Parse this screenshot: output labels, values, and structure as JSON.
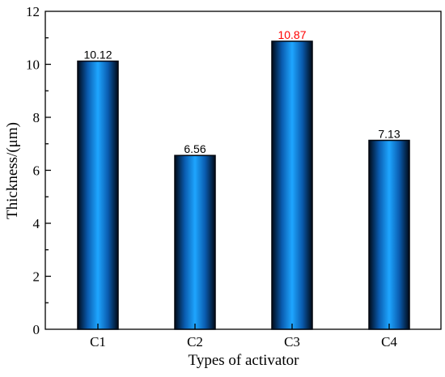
{
  "chart_data": {
    "type": "bar",
    "categories": [
      "C1",
      "C2",
      "C3",
      "C4"
    ],
    "values": [
      10.12,
      6.56,
      10.87,
      7.13
    ],
    "data_labels": [
      "10.12",
      "6.56",
      "10.87",
      "7.13"
    ],
    "highlight_index": 2,
    "highlight_color": "#ff0000",
    "label_color": "#000000",
    "bar_gradient": [
      "#000a18",
      "#0a5cb0",
      "#1ea6ff",
      "#0a5cb0",
      "#000a18"
    ],
    "xlabel": "Types of activator",
    "ylabel": "Thickness/(μm)",
    "ylim": [
      0,
      12
    ],
    "yticks": [
      0,
      2,
      4,
      6,
      8,
      10,
      12
    ],
    "grid": false,
    "legend": false
  }
}
